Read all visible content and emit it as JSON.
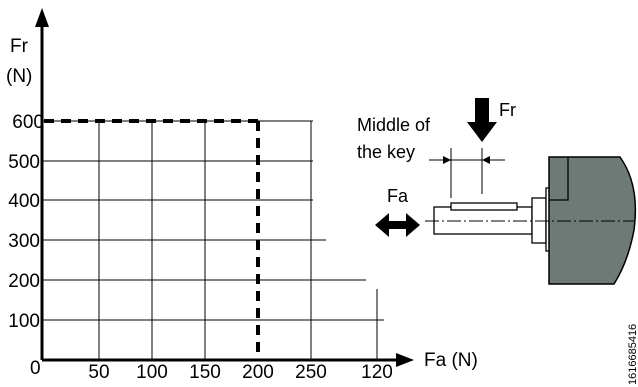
{
  "axes": {
    "y_label_line1": "Fr",
    "y_label_line2": "(N)",
    "x_label": "Fa (N)",
    "origin": "0",
    "y_ticks": [
      "600",
      "500",
      "400",
      "300",
      "200",
      "100"
    ],
    "x_ticks": [
      "50",
      "100",
      "150",
      "200",
      "250",
      "120"
    ]
  },
  "shaft": {
    "label_middle_line1": "Middle of",
    "label_middle_line2": "the key",
    "label_fr": "Fr",
    "label_fa": "Fa",
    "housing_color": "#6e7a76"
  },
  "figure_code": "1616685416",
  "limit": {
    "fr": 600,
    "fa": 200
  }
}
